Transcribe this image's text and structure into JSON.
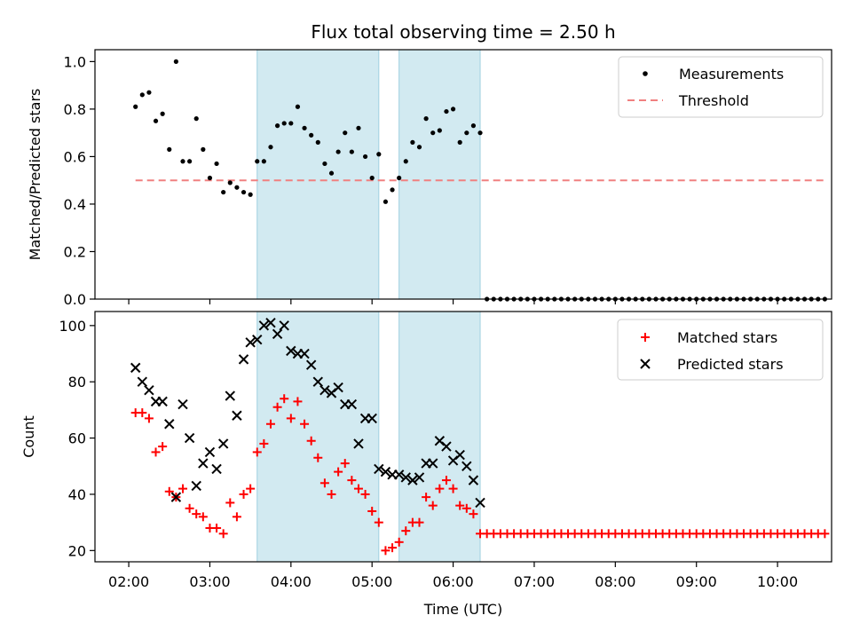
{
  "chart_data": [
    {
      "type": "scatter",
      "title": "Flux total observing time = 2.50 h",
      "ylabel": "Matched/Predicted stars",
      "ylim": [
        0,
        1.05
      ],
      "yticks": [
        "0.0",
        "0.2",
        "0.4",
        "0.6",
        "0.8",
        "1.0"
      ],
      "legend_position": "top-right",
      "shaded_regions": [
        [
          "03:35",
          "05:05"
        ],
        [
          "05:20",
          "06:20"
        ]
      ],
      "threshold": {
        "name": "Threshold",
        "value": 0.5,
        "x_start": "02:05",
        "x_end": "10:35",
        "color": "#f08080"
      },
      "series": [
        {
          "name": "Measurements",
          "color": "#000000",
          "points": [
            [
              "02:05",
              0.81
            ],
            [
              "02:10",
              0.86
            ],
            [
              "02:15",
              0.87
            ],
            [
              "02:20",
              0.75
            ],
            [
              "02:25",
              0.78
            ],
            [
              "02:30",
              0.63
            ],
            [
              "02:35",
              1.0
            ],
            [
              "02:40",
              0.58
            ],
            [
              "02:45",
              0.58
            ],
            [
              "02:50",
              0.76
            ],
            [
              "02:55",
              0.63
            ],
            [
              "03:00",
              0.51
            ],
            [
              "03:05",
              0.57
            ],
            [
              "03:10",
              0.45
            ],
            [
              "03:15",
              0.49
            ],
            [
              "03:20",
              0.47
            ],
            [
              "03:25",
              0.45
            ],
            [
              "03:30",
              0.44
            ],
            [
              "03:35",
              0.58
            ],
            [
              "03:40",
              0.58
            ],
            [
              "03:45",
              0.64
            ],
            [
              "03:50",
              0.73
            ],
            [
              "03:55",
              0.74
            ],
            [
              "04:00",
              0.74
            ],
            [
              "04:05",
              0.81
            ],
            [
              "04:10",
              0.72
            ],
            [
              "04:15",
              0.69
            ],
            [
              "04:20",
              0.66
            ],
            [
              "04:25",
              0.57
            ],
            [
              "04:30",
              0.53
            ],
            [
              "04:35",
              0.62
            ],
            [
              "04:40",
              0.7
            ],
            [
              "04:45",
              0.62
            ],
            [
              "04:50",
              0.72
            ],
            [
              "04:55",
              0.6
            ],
            [
              "05:00",
              0.51
            ],
            [
              "05:05",
              0.61
            ],
            [
              "05:10",
              0.41
            ],
            [
              "05:15",
              0.46
            ],
            [
              "05:20",
              0.51
            ],
            [
              "05:25",
              0.58
            ],
            [
              "05:30",
              0.66
            ],
            [
              "05:35",
              0.64
            ],
            [
              "05:40",
              0.76
            ],
            [
              "05:45",
              0.7
            ],
            [
              "05:50",
              0.71
            ],
            [
              "05:55",
              0.79
            ],
            [
              "06:00",
              0.8
            ],
            [
              "06:05",
              0.66
            ],
            [
              "06:10",
              0.7
            ],
            [
              "06:15",
              0.73
            ],
            [
              "06:20",
              0.7
            ],
            [
              "06:25",
              0.0
            ],
            [
              "06:30",
              0.0
            ],
            [
              "06:35",
              0.0
            ],
            [
              "06:40",
              0.0
            ],
            [
              "06:45",
              0.0
            ],
            [
              "06:50",
              0.0
            ],
            [
              "06:55",
              0.0
            ],
            [
              "07:00",
              0.0
            ],
            [
              "07:05",
              0.0
            ],
            [
              "07:10",
              0.0
            ],
            [
              "07:15",
              0.0
            ],
            [
              "07:20",
              0.0
            ],
            [
              "07:25",
              0.0
            ],
            [
              "07:30",
              0.0
            ],
            [
              "07:35",
              0.0
            ],
            [
              "07:40",
              0.0
            ],
            [
              "07:45",
              0.0
            ],
            [
              "07:50",
              0.0
            ],
            [
              "07:55",
              0.0
            ],
            [
              "08:00",
              0.0
            ],
            [
              "08:05",
              0.0
            ],
            [
              "08:10",
              0.0
            ],
            [
              "08:15",
              0.0
            ],
            [
              "08:20",
              0.0
            ],
            [
              "08:25",
              0.0
            ],
            [
              "08:30",
              0.0
            ],
            [
              "08:35",
              0.0
            ],
            [
              "08:40",
              0.0
            ],
            [
              "08:45",
              0.0
            ],
            [
              "08:50",
              0.0
            ],
            [
              "08:55",
              0.0
            ],
            [
              "09:00",
              0.0
            ],
            [
              "09:05",
              0.0
            ],
            [
              "09:10",
              0.0
            ],
            [
              "09:15",
              0.0
            ],
            [
              "09:20",
              0.0
            ],
            [
              "09:25",
              0.0
            ],
            [
              "09:30",
              0.0
            ],
            [
              "09:35",
              0.0
            ],
            [
              "09:40",
              0.0
            ],
            [
              "09:45",
              0.0
            ],
            [
              "09:50",
              0.0
            ],
            [
              "09:55",
              0.0
            ],
            [
              "10:00",
              0.0
            ],
            [
              "10:05",
              0.0
            ],
            [
              "10:10",
              0.0
            ],
            [
              "10:15",
              0.0
            ],
            [
              "10:20",
              0.0
            ],
            [
              "10:25",
              0.0
            ],
            [
              "10:30",
              0.0
            ],
            [
              "10:35",
              0.0
            ]
          ]
        }
      ]
    },
    {
      "type": "scatter",
      "xlabel": "Time (UTC)",
      "ylabel": "Count",
      "xlim": [
        "01:35",
        "10:40"
      ],
      "ylim": [
        16,
        105
      ],
      "xticks": [
        "02:00",
        "03:00",
        "04:00",
        "05:00",
        "06:00",
        "07:00",
        "08:00",
        "09:00",
        "10:00"
      ],
      "yticks": [
        "20",
        "40",
        "60",
        "80",
        "100"
      ],
      "legend_position": "top-right",
      "shaded_regions": [
        [
          "03:35",
          "05:05"
        ],
        [
          "05:20",
          "06:20"
        ]
      ],
      "series": [
        {
          "name": "Matched stars",
          "marker": "+",
          "color": "#ff0000",
          "points": [
            [
              "02:05",
              69
            ],
            [
              "02:10",
              69
            ],
            [
              "02:15",
              67
            ],
            [
              "02:20",
              55
            ],
            [
              "02:25",
              57
            ],
            [
              "02:30",
              41
            ],
            [
              "02:35",
              39
            ],
            [
              "02:40",
              42
            ],
            [
              "02:45",
              35
            ],
            [
              "02:50",
              33
            ],
            [
              "02:55",
              32
            ],
            [
              "03:00",
              28
            ],
            [
              "03:05",
              28
            ],
            [
              "03:10",
              26
            ],
            [
              "03:15",
              37
            ],
            [
              "03:20",
              32
            ],
            [
              "03:25",
              40
            ],
            [
              "03:30",
              42
            ],
            [
              "03:35",
              55
            ],
            [
              "03:40",
              58
            ],
            [
              "03:45",
              65
            ],
            [
              "03:50",
              71
            ],
            [
              "03:55",
              74
            ],
            [
              "04:00",
              67
            ],
            [
              "04:05",
              73
            ],
            [
              "04:10",
              65
            ],
            [
              "04:15",
              59
            ],
            [
              "04:20",
              53
            ],
            [
              "04:25",
              44
            ],
            [
              "04:30",
              40
            ],
            [
              "04:35",
              48
            ],
            [
              "04:40",
              51
            ],
            [
              "04:45",
              45
            ],
            [
              "04:50",
              42
            ],
            [
              "04:55",
              40
            ],
            [
              "05:00",
              34
            ],
            [
              "05:05",
              30
            ],
            [
              "05:10",
              20
            ],
            [
              "05:15",
              21
            ],
            [
              "05:20",
              23
            ],
            [
              "05:25",
              27
            ],
            [
              "05:30",
              30
            ],
            [
              "05:35",
              30
            ],
            [
              "05:40",
              39
            ],
            [
              "05:45",
              36
            ],
            [
              "05:50",
              42
            ],
            [
              "05:55",
              45
            ],
            [
              "06:00",
              42
            ],
            [
              "06:05",
              36
            ],
            [
              "06:10",
              35
            ],
            [
              "06:15",
              33
            ],
            [
              "06:20",
              26
            ],
            [
              "06:25",
              26
            ],
            [
              "06:30",
              26
            ],
            [
              "06:35",
              26
            ],
            [
              "06:40",
              26
            ],
            [
              "06:45",
              26
            ],
            [
              "06:50",
              26
            ],
            [
              "06:55",
              26
            ],
            [
              "07:00",
              26
            ],
            [
              "07:05",
              26
            ],
            [
              "07:10",
              26
            ],
            [
              "07:15",
              26
            ],
            [
              "07:20",
              26
            ],
            [
              "07:25",
              26
            ],
            [
              "07:30",
              26
            ],
            [
              "07:35",
              26
            ],
            [
              "07:40",
              26
            ],
            [
              "07:45",
              26
            ],
            [
              "07:50",
              26
            ],
            [
              "07:55",
              26
            ],
            [
              "08:00",
              26
            ],
            [
              "08:05",
              26
            ],
            [
              "08:10",
              26
            ],
            [
              "08:15",
              26
            ],
            [
              "08:20",
              26
            ],
            [
              "08:25",
              26
            ],
            [
              "08:30",
              26
            ],
            [
              "08:35",
              26
            ],
            [
              "08:40",
              26
            ],
            [
              "08:45",
              26
            ],
            [
              "08:50",
              26
            ],
            [
              "08:55",
              26
            ],
            [
              "09:00",
              26
            ],
            [
              "09:05",
              26
            ],
            [
              "09:10",
              26
            ],
            [
              "09:15",
              26
            ],
            [
              "09:20",
              26
            ],
            [
              "09:25",
              26
            ],
            [
              "09:30",
              26
            ],
            [
              "09:35",
              26
            ],
            [
              "09:40",
              26
            ],
            [
              "09:45",
              26
            ],
            [
              "09:50",
              26
            ],
            [
              "09:55",
              26
            ],
            [
              "10:00",
              26
            ],
            [
              "10:05",
              26
            ],
            [
              "10:10",
              26
            ],
            [
              "10:15",
              26
            ],
            [
              "10:20",
              26
            ],
            [
              "10:25",
              26
            ],
            [
              "10:30",
              26
            ],
            [
              "10:35",
              26
            ]
          ]
        },
        {
          "name": "Predicted stars",
          "marker": "x",
          "color": "#000000",
          "points": [
            [
              "02:05",
              85
            ],
            [
              "02:10",
              80
            ],
            [
              "02:15",
              77
            ],
            [
              "02:20",
              73
            ],
            [
              "02:25",
              73
            ],
            [
              "02:30",
              65
            ],
            [
              "02:35",
              39
            ],
            [
              "02:40",
              72
            ],
            [
              "02:45",
              60
            ],
            [
              "02:50",
              43
            ],
            [
              "02:55",
              51
            ],
            [
              "03:00",
              55
            ],
            [
              "03:05",
              49
            ],
            [
              "03:10",
              58
            ],
            [
              "03:15",
              75
            ],
            [
              "03:20",
              68
            ],
            [
              "03:25",
              88
            ],
            [
              "03:30",
              94
            ],
            [
              "03:35",
              95
            ],
            [
              "03:40",
              100
            ],
            [
              "03:45",
              101
            ],
            [
              "03:50",
              97
            ],
            [
              "03:55",
              100
            ],
            [
              "04:00",
              91
            ],
            [
              "04:05",
              90
            ],
            [
              "04:10",
              90
            ],
            [
              "04:15",
              86
            ],
            [
              "04:20",
              80
            ],
            [
              "04:25",
              77
            ],
            [
              "04:30",
              76
            ],
            [
              "04:35",
              78
            ],
            [
              "04:40",
              72
            ],
            [
              "04:45",
              72
            ],
            [
              "04:50",
              58
            ],
            [
              "04:55",
              67
            ],
            [
              "05:00",
              67
            ],
            [
              "05:05",
              49
            ],
            [
              "05:10",
              48
            ],
            [
              "05:15",
              47
            ],
            [
              "05:20",
              47
            ],
            [
              "05:25",
              46
            ],
            [
              "05:30",
              45
            ],
            [
              "05:35",
              46
            ],
            [
              "05:40",
              51
            ],
            [
              "05:45",
              51
            ],
            [
              "05:50",
              59
            ],
            [
              "05:55",
              57
            ],
            [
              "06:00",
              52
            ],
            [
              "06:05",
              54
            ],
            [
              "06:10",
              50
            ],
            [
              "06:15",
              45
            ],
            [
              "06:20",
              37
            ]
          ]
        }
      ]
    }
  ]
}
